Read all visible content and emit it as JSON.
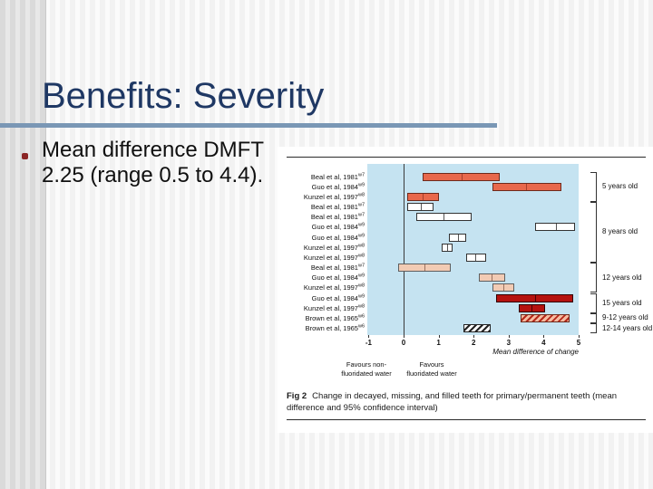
{
  "slide": {
    "title": "Benefits: Severity",
    "bullet": {
      "line1": "Mean difference DMFT",
      "line2": "2.25 (range 0.5 to 4.4)."
    },
    "accent_color": "#7A97B5",
    "title_color": "#1F3864",
    "bullet_dot_color": "#8B2525"
  },
  "figure": {
    "caption_label": "Fig 2",
    "caption_text": "Change in decayed, missing, and filled teeth for primary/permanent teeth (mean difference and 95% confidence interval)",
    "axis_note": "Mean difference of change",
    "favours_left_line1": "Favours non-",
    "favours_left_line2": "fluoridated water",
    "favours_right_line1": "Favours",
    "favours_right_line2": "fluoridated water"
  },
  "chart_data": {
    "type": "bar",
    "subtype": "forest-plot-horizontal-95ci",
    "title": "Fig 2 Change in decayed, missing, and filled teeth for primary/permanent teeth (mean difference and 95% confidence interval)",
    "xlabel": "Mean difference of change",
    "xlim": [
      -1.05,
      5
    ],
    "xticks": [
      -1,
      0,
      1,
      2,
      3,
      4,
      5
    ],
    "zero_line": 0,
    "grid": false,
    "plot_bg": "#C5E3F1",
    "styles": {
      "salmon": {
        "fill": "#E8684C",
        "edge": "#6E2A1C",
        "marker": "#A6402C"
      },
      "white": {
        "fill": "#FFFFFF",
        "edge": "#333333",
        "marker": "#555555"
      },
      "pink": {
        "fill": "#F2CBB4",
        "edge": "#5f5f5f",
        "marker": "#9A7260"
      },
      "darkred": {
        "fill": "#B5120F",
        "edge": "#300000",
        "marker": "#4d0000"
      },
      "hatch_pink": {
        "fill": "#F5BBA0",
        "edge": "#6E2A1C",
        "hatch": "#B5281A"
      },
      "hatch_white": {
        "fill": "#FFFFFF",
        "edge": "#222222",
        "hatch": "#222222"
      }
    },
    "rows": [
      {
        "study": "Beal et al, 1981",
        "ref": "w7",
        "group": "5 years old",
        "low": 0.55,
        "mid": 1.65,
        "high": 2.75,
        "style": "salmon"
      },
      {
        "study": "Guo et al, 1984",
        "ref": "w9",
        "group": "5 years old",
        "low": 2.55,
        "mid": 3.5,
        "high": 4.5,
        "style": "salmon"
      },
      {
        "study": "Kunzel et al, 1997",
        "ref": "w8",
        "group": "5 years old",
        "low": 0.1,
        "mid": 0.55,
        "high": 1.0,
        "style": "salmon"
      },
      {
        "study": "Beal et al, 1981",
        "ref": "w7",
        "group": "8 years old",
        "low": 0.1,
        "mid": 0.5,
        "high": 0.85,
        "style": "white"
      },
      {
        "study": "Beal et al, 1981",
        "ref": "w7",
        "group": "8 years old",
        "low": 0.35,
        "mid": 1.15,
        "high": 1.95,
        "style": "white"
      },
      {
        "study": "Guo et al, 1984",
        "ref": "w9",
        "group": "8 years old",
        "low": 3.75,
        "mid": 4.35,
        "high": 4.9,
        "style": "white"
      },
      {
        "study": "Guo et al, 1984",
        "ref": "w9",
        "group": "8 years old",
        "low": 1.3,
        "mid": 1.55,
        "high": 1.8,
        "style": "white"
      },
      {
        "study": "Kunzel et al, 1997",
        "ref": "w8",
        "group": "8 years old",
        "low": 1.1,
        "mid": 1.25,
        "high": 1.4,
        "style": "white"
      },
      {
        "study": "Kunzel et al, 1997",
        "ref": "w8",
        "group": "8 years old",
        "low": 1.8,
        "mid": 2.05,
        "high": 2.35,
        "style": "white"
      },
      {
        "study": "Beal et al, 1981",
        "ref": "w7",
        "group": "12 years old",
        "low": -0.15,
        "mid": 0.6,
        "high": 1.35,
        "style": "pink"
      },
      {
        "study": "Guo et al, 1984",
        "ref": "w9",
        "group": "12 years old",
        "low": 2.15,
        "mid": 2.5,
        "high": 2.9,
        "style": "pink"
      },
      {
        "study": "Kunzel et al, 1997",
        "ref": "w8",
        "group": "12 years old",
        "low": 2.55,
        "mid": 2.85,
        "high": 3.15,
        "style": "pink"
      },
      {
        "study": "Guo et al, 1984",
        "ref": "w9",
        "group": "15 years old",
        "low": 2.65,
        "mid": 3.75,
        "high": 4.85,
        "style": "darkred"
      },
      {
        "study": "Kunzel et al, 1997",
        "ref": "w8",
        "group": "15 years old",
        "low": 3.3,
        "mid": 3.65,
        "high": 4.05,
        "style": "darkred"
      },
      {
        "study": "Brown et al, 1965",
        "ref": "w6",
        "group": "9-12 years old",
        "low": 3.35,
        "mid": null,
        "high": 4.75,
        "style": "hatch_pink"
      },
      {
        "study": "Brown et al, 1965",
        "ref": "w6",
        "group": "12-14 years old",
        "low": 1.7,
        "mid": null,
        "high": 2.5,
        "style": "hatch_white"
      }
    ],
    "groups": [
      {
        "label": "5 years old",
        "from": 0,
        "to": 2
      },
      {
        "label": "8 years old",
        "from": 3,
        "to": 8
      },
      {
        "label": "12 years old",
        "from": 9,
        "to": 11
      },
      {
        "label": "15 years old",
        "from": 12,
        "to": 13
      },
      {
        "label": "9-12 years old",
        "from": 14,
        "to": 14
      },
      {
        "label": "12-14 years old",
        "from": 15,
        "to": 15
      }
    ]
  }
}
